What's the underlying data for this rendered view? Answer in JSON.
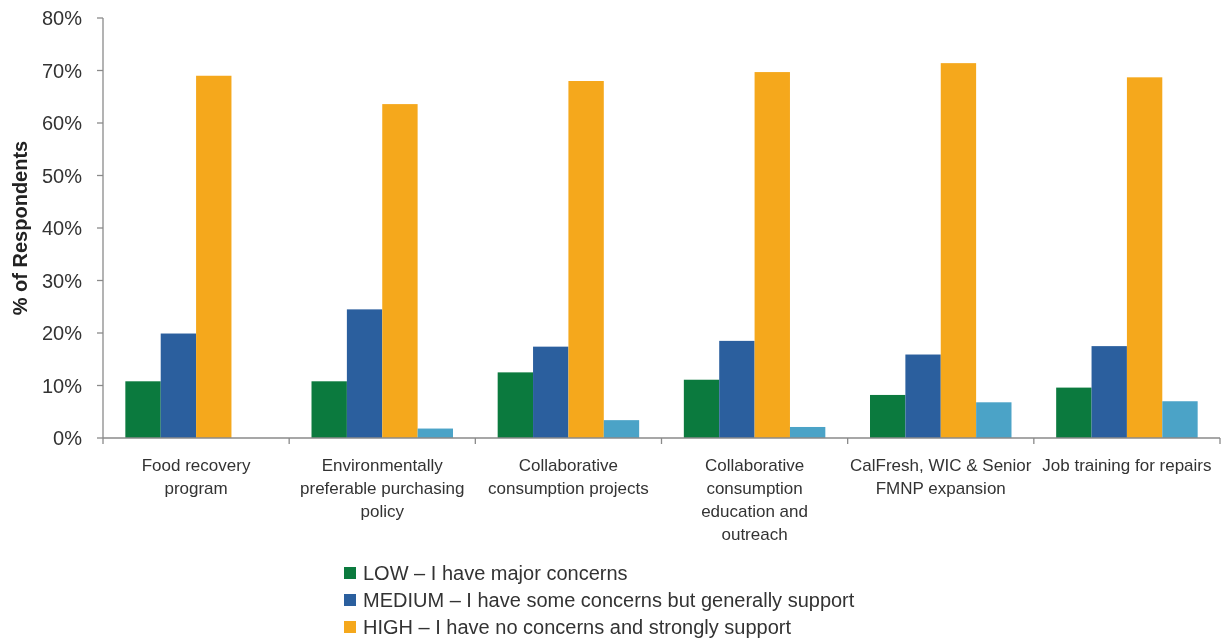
{
  "chart_data": {
    "type": "bar",
    "ylabel": "% of Respondents",
    "categories": [
      "Food recovery\nprogram",
      "Environmentally\npreferable purchasing\npolicy",
      "Collaborative\nconsumption projects",
      "Collaborative\nconsumption\neducation and\noutreach",
      "CalFresh, WIC & Senior\nFMNP expansion",
      "Job training for repairs"
    ],
    "series": [
      {
        "name": "LOW – I have major concerns",
        "color": "#0b7a3e",
        "values": [
          10.8,
          10.8,
          12.5,
          11.1,
          8.2,
          9.6
        ]
      },
      {
        "name": "MEDIUM – I have some concerns but generally support",
        "color": "#2b5f9e",
        "values": [
          19.9,
          24.5,
          17.4,
          18.5,
          15.9,
          17.5
        ]
      },
      {
        "name": "HIGH – I have no concerns and strongly support",
        "color": "#f5a81c",
        "values": [
          69.0,
          63.6,
          68.0,
          69.7,
          71.4,
          68.7
        ]
      },
      {
        "color": "#4ba3c7",
        "values": [
          null,
          1.8,
          3.4,
          2.1,
          6.8,
          7.0
        ]
      }
    ],
    "ylim": [
      0,
      80
    ],
    "yticks": [
      {
        "value": 0,
        "label": "0%"
      },
      {
        "value": 10,
        "label": "10%"
      },
      {
        "value": 20,
        "label": "20%"
      },
      {
        "value": 30,
        "label": "30%"
      },
      {
        "value": 40,
        "label": "40%"
      },
      {
        "value": 50,
        "label": "50%"
      },
      {
        "value": 60,
        "label": "60%"
      },
      {
        "value": 70,
        "label": "70%"
      },
      {
        "value": 80,
        "label": "80%"
      }
    ],
    "legend": "bottom"
  }
}
